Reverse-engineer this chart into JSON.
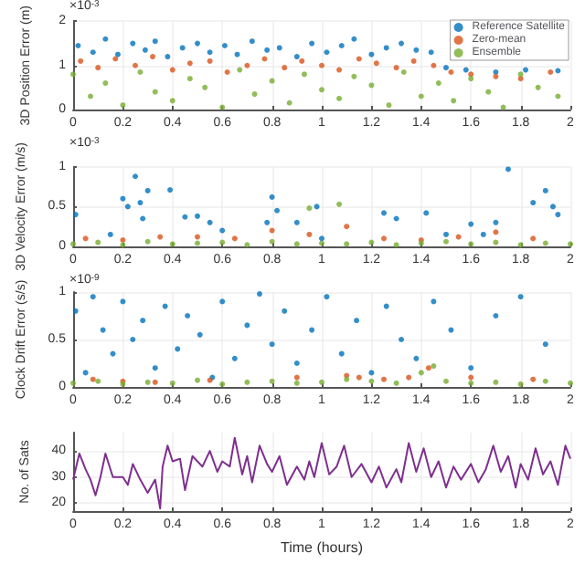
{
  "chart_data": [
    {
      "type": "scatter",
      "ylabel": "3D Position Error (m)",
      "annotations": [
        "×10$^{-3}$"
      ],
      "xlim": [
        0,
        2
      ],
      "xticks": [
        0,
        0.2,
        0.4,
        0.6,
        0.8,
        1,
        1.2,
        1.4,
        1.6,
        1.8,
        2
      ],
      "ylim": [
        0,
        2
      ],
      "yticks": [
        0,
        1,
        2
      ],
      "grid": true,
      "legend": "top right",
      "marker": "circle",
      "series": [
        {
          "name": "Reference Satellite",
          "color": "#0072bd",
          "x": [
            0.02,
            0.08,
            0.13,
            0.18,
            0.24,
            0.29,
            0.33,
            0.38,
            0.44,
            0.5,
            0.55,
            0.61,
            0.66,
            0.72,
            0.78,
            0.83,
            0.9,
            0.96,
            1.02,
            1.08,
            1.13,
            1.2,
            1.26,
            1.32,
            1.38,
            1.44,
            1.5,
            1.58,
            1.7,
            1.82,
            1.95
          ],
          "values": [
            1.45,
            1.3,
            1.6,
            1.25,
            1.5,
            1.35,
            1.55,
            1.2,
            1.4,
            1.5,
            1.3,
            1.45,
            1.25,
            1.55,
            1.35,
            1.4,
            1.2,
            1.5,
            1.3,
            1.45,
            1.6,
            1.25,
            1.4,
            1.5,
            1.35,
            1.3,
            0.95,
            0.9,
            0.85,
            0.9,
            0.88
          ]
        },
        {
          "name": "Zero-mean",
          "color": "#d95319",
          "x": [
            0.03,
            0.1,
            0.17,
            0.25,
            0.32,
            0.4,
            0.47,
            0.55,
            0.62,
            0.7,
            0.77,
            0.85,
            0.92,
            1.0,
            1.07,
            1.15,
            1.22,
            1.3,
            1.37,
            1.45,
            1.52,
            1.6,
            1.7,
            1.8,
            1.92
          ],
          "values": [
            1.1,
            0.95,
            1.15,
            1.0,
            1.2,
            0.9,
            1.05,
            1.1,
            0.85,
            1.0,
            1.15,
            0.95,
            1.1,
            1.0,
            0.9,
            1.15,
            1.05,
            0.95,
            1.1,
            1.0,
            0.85,
            0.8,
            0.75,
            0.7,
            0.85
          ]
        },
        {
          "name": "Ensemble",
          "color": "#77ac30",
          "x": [
            0,
            0.07,
            0.13,
            0.2,
            0.27,
            0.33,
            0.4,
            0.47,
            0.53,
            0.6,
            0.67,
            0.73,
            0.8,
            0.87,
            0.93,
            1.0,
            1.07,
            1.13,
            1.2,
            1.27,
            1.33,
            1.4,
            1.47,
            1.53,
            1.6,
            1.67,
            1.73,
            1.8,
            1.87,
            1.95
          ],
          "values": [
            0.8,
            0.3,
            0.6,
            0.1,
            0.85,
            0.4,
            0.2,
            0.7,
            0.5,
            0.05,
            0.9,
            0.35,
            0.65,
            0.15,
            0.8,
            0.45,
            0.25,
            0.75,
            0.55,
            0.1,
            0.85,
            0.3,
            0.6,
            0.2,
            0.7,
            0.4,
            0.05,
            0.8,
            0.5,
            0.3
          ]
        }
      ]
    },
    {
      "type": "scatter",
      "ylabel": "3D Velocity Error (m/s)",
      "annotations": [
        "×10$^{-3}$"
      ],
      "xlim": [
        0,
        2
      ],
      "xticks": [
        0,
        0.2,
        0.4,
        0.6,
        0.8,
        1,
        1.2,
        1.4,
        1.6,
        1.8,
        2
      ],
      "ylim": [
        0,
        1
      ],
      "yticks": [
        0,
        0.5,
        1
      ],
      "grid": true,
      "marker": "circle",
      "series": [
        {
          "color": "#0072bd",
          "x": [
            0.01,
            0.15,
            0.2,
            0.22,
            0.25,
            0.27,
            0.28,
            0.3,
            0.39,
            0.45,
            0.5,
            0.55,
            0.6,
            0.78,
            0.8,
            0.82,
            0.9,
            0.98,
            1.0,
            1.25,
            1.3,
            1.42,
            1.5,
            1.6,
            1.65,
            1.7,
            1.75,
            1.85,
            1.9,
            1.93,
            1.95
          ],
          "values": [
            0.4,
            0.15,
            0.6,
            0.5,
            0.88,
            0.55,
            0.35,
            0.7,
            0.71,
            0.37,
            0.38,
            0.3,
            0.2,
            0.3,
            0.62,
            0.45,
            0.3,
            0.5,
            0.1,
            0.42,
            0.35,
            0.42,
            0.15,
            0.28,
            0.15,
            0.3,
            0.97,
            0.55,
            0.7,
            0.5,
            0.4
          ]
        },
        {
          "color": "#d95319",
          "x": [
            0.05,
            0.2,
            0.35,
            0.5,
            0.65,
            0.8,
            0.95,
            1.1,
            1.25,
            1.4,
            1.55,
            1.7,
            1.85
          ],
          "values": [
            0.1,
            0.08,
            0.12,
            0.12,
            0.1,
            0.2,
            0.15,
            0.25,
            0.1,
            0.08,
            0.12,
            0.18,
            0.1
          ]
        },
        {
          "color": "#77ac30",
          "x": [
            0,
            0.1,
            0.2,
            0.3,
            0.4,
            0.5,
            0.6,
            0.7,
            0.8,
            0.9,
            0.95,
            1.0,
            1.07,
            1.1,
            1.2,
            1.3,
            1.4,
            1.5,
            1.6,
            1.7,
            1.8,
            1.9,
            2.0
          ],
          "values": [
            0.03,
            0.05,
            0.02,
            0.06,
            0.03,
            0.04,
            0.05,
            0.02,
            0.06,
            0.03,
            0.48,
            0.04,
            0.53,
            0.03,
            0.05,
            0.02,
            0.04,
            0.06,
            0.03,
            0.05,
            0.02,
            0.04,
            0.03
          ]
        }
      ]
    },
    {
      "type": "scatter",
      "ylabel": "Clock Drift Error (s/s)",
      "annotations": [
        "×10$^{-9}$"
      ],
      "xlim": [
        0,
        2
      ],
      "xticks": [
        0,
        0.2,
        0.4,
        0.6,
        0.8,
        1,
        1.2,
        1.4,
        1.6,
        1.8,
        2
      ],
      "ylim": [
        0,
        1
      ],
      "yticks": [
        0,
        0.5,
        1
      ],
      "grid": true,
      "marker": "circle",
      "series": [
        {
          "color": "#0072bd",
          "x": [
            0.01,
            0.05,
            0.08,
            0.12,
            0.16,
            0.2,
            0.24,
            0.28,
            0.33,
            0.37,
            0.42,
            0.46,
            0.51,
            0.56,
            0.6,
            0.65,
            0.7,
            0.75,
            0.8,
            0.85,
            0.9,
            0.96,
            1.02,
            1.08,
            1.14,
            1.2,
            1.26,
            1.32,
            1.38,
            1.45,
            1.52,
            1.6,
            1.7,
            1.8,
            1.9
          ],
          "values": [
            0.8,
            0.15,
            0.95,
            0.6,
            0.35,
            0.9,
            0.5,
            0.7,
            0.2,
            0.85,
            0.4,
            0.75,
            0.55,
            0.1,
            0.9,
            0.3,
            0.65,
            0.98,
            0.45,
            0.8,
            0.25,
            0.6,
            0.95,
            0.35,
            0.7,
            0.15,
            0.85,
            0.5,
            0.3,
            0.9,
            0.6,
            0.2,
            0.75,
            0.95,
            0.45
          ]
        },
        {
          "color": "#d95319",
          "x": [
            0.08,
            0.2,
            0.33,
            0.55,
            0.9,
            1.1,
            1.15,
            1.25,
            1.35,
            1.43,
            1.6,
            1.85
          ],
          "values": [
            0.08,
            0.06,
            0.05,
            0.07,
            0.1,
            0.12,
            0.1,
            0.08,
            0.1,
            0.2,
            0.1,
            0.08
          ]
        },
        {
          "color": "#77ac30",
          "x": [
            0,
            0.1,
            0.2,
            0.3,
            0.4,
            0.5,
            0.6,
            0.7,
            0.8,
            0.9,
            1.0,
            1.1,
            1.2,
            1.3,
            1.4,
            1.45,
            1.5,
            1.6,
            1.7,
            1.8,
            1.9,
            2.0
          ],
          "values": [
            0.04,
            0.06,
            0.03,
            0.05,
            0.04,
            0.07,
            0.03,
            0.05,
            0.06,
            0.04,
            0.05,
            0.08,
            0.06,
            0.04,
            0.15,
            0.22,
            0.06,
            0.04,
            0.05,
            0.03,
            0.06,
            0.04
          ]
        }
      ]
    },
    {
      "type": "line",
      "ylabel": "No. of Sats",
      "xlabel": "Time (hours)",
      "xlim": [
        0,
        2
      ],
      "xticks": [
        0,
        0.2,
        0.4,
        0.6,
        0.8,
        1,
        1.2,
        1.4,
        1.6,
        1.8,
        2
      ],
      "ylim": [
        17,
        47
      ],
      "yticks": [
        20,
        30,
        40
      ],
      "grid": true,
      "series": [
        {
          "color": "#7e2f8e",
          "x": [
            0,
            0.025,
            0.05,
            0.07,
            0.09,
            0.11,
            0.13,
            0.16,
            0.2,
            0.22,
            0.24,
            0.27,
            0.3,
            0.33,
            0.35,
            0.36,
            0.38,
            0.4,
            0.43,
            0.45,
            0.48,
            0.52,
            0.55,
            0.58,
            0.6,
            0.63,
            0.65,
            0.68,
            0.7,
            0.72,
            0.75,
            0.78,
            0.8,
            0.83,
            0.86,
            0.9,
            0.93,
            0.95,
            0.97,
            1.0,
            1.03,
            1.06,
            1.09,
            1.12,
            1.16,
            1.2,
            1.23,
            1.26,
            1.3,
            1.32,
            1.35,
            1.38,
            1.41,
            1.44,
            1.47,
            1.5,
            1.53,
            1.56,
            1.6,
            1.63,
            1.66,
            1.69,
            1.72,
            1.75,
            1.78,
            1.8,
            1.83,
            1.86,
            1.89,
            1.92,
            1.95,
            1.98,
            2.0
          ],
          "values": [
            29,
            39,
            33,
            29,
            23,
            30,
            39,
            30,
            30,
            27,
            35,
            29,
            24,
            29,
            18,
            34,
            42,
            36,
            37,
            25,
            38,
            34,
            40,
            32,
            36,
            34,
            45,
            31,
            38,
            28,
            42,
            35,
            32,
            38,
            27,
            34,
            29,
            36,
            30,
            43,
            31,
            34,
            42,
            30,
            35,
            28,
            34,
            26,
            33,
            28,
            43,
            32,
            41,
            30,
            36,
            26,
            34,
            29,
            35,
            28,
            33,
            42,
            32,
            38,
            26,
            35,
            29,
            41,
            31,
            36,
            27,
            42,
            37
          ]
        }
      ]
    }
  ]
}
